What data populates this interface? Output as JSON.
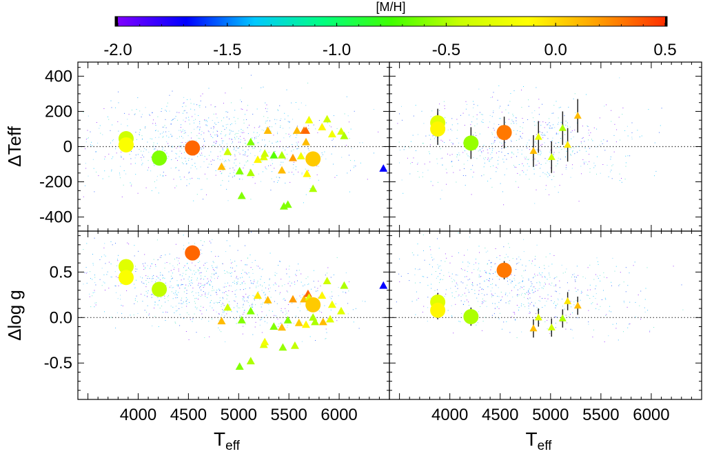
{
  "chart_data": {
    "type": "scatter",
    "colorbar": {
      "label": "[M/H]",
      "range": [
        -2.0,
        0.5
      ],
      "tick_labels": [
        "-2.0",
        "-1.5",
        "-1.0",
        "-0.5",
        "0.0",
        "0.5"
      ],
      "tick_values": [
        -2.0,
        -1.5,
        -1.0,
        -0.5,
        0.0,
        0.5
      ],
      "colors": [
        "#7f00ff",
        "#0000ff",
        "#00c8ff",
        "#00ff80",
        "#40ff00",
        "#c8ff00",
        "#ffff00",
        "#ffa000",
        "#ff3000"
      ]
    },
    "xlabel_main": "T",
    "xlabel_sub": "eff",
    "xlim": [
      3400,
      6500
    ],
    "x_tick_labels": [
      "4000",
      "4500",
      "5000",
      "5500",
      "6000"
    ],
    "x_tick_values": [
      4000,
      4500,
      5000,
      5500,
      6000
    ],
    "rows": [
      {
        "ylabel": "ΔTeff",
        "ylim": [
          -480,
          480
        ],
        "y_tick_labels": [
          "400",
          "200",
          "0",
          "-200",
          "-400"
        ],
        "y_tick_values": [
          400,
          200,
          0,
          -200,
          -400
        ],
        "zero_line": 0
      },
      {
        "ylabel": "Δlog g",
        "ylim": [
          -0.9,
          0.95
        ],
        "y_tick_labels": [
          "0.5",
          "0.0",
          "-0.5"
        ],
        "y_tick_values": [
          0.5,
          0.0,
          -0.5
        ],
        "zero_line": 0
      }
    ],
    "panels": [
      {
        "id": "top-left",
        "row": 0,
        "circles": [
          {
            "teff": 3880,
            "dy": 45,
            "mh": -0.4
          },
          {
            "teff": 3880,
            "dy": 10,
            "mh": -0.15
          },
          {
            "teff": 4210,
            "dy": -65,
            "mh": -0.6
          },
          {
            "teff": 4540,
            "dy": -8,
            "mh": 0.35
          },
          {
            "teff": 5740,
            "dy": -70,
            "mh": 0.05
          }
        ],
        "triangles": [
          {
            "teff": 4830,
            "dy": -115,
            "mh": 0.1
          },
          {
            "teff": 4890,
            "dy": -30,
            "mh": -0.4
          },
          {
            "teff": 5010,
            "dy": -140,
            "mh": -0.6
          },
          {
            "teff": 5030,
            "dy": -280,
            "mh": -0.6
          },
          {
            "teff": 5120,
            "dy": 25,
            "mh": -0.6
          },
          {
            "teff": 5120,
            "dy": -150,
            "mh": -0.5
          },
          {
            "teff": 5190,
            "dy": -75,
            "mh": -0.1
          },
          {
            "teff": 5250,
            "dy": -60,
            "mh": -0.3
          },
          {
            "teff": 5260,
            "dy": -40,
            "mh": -0.4
          },
          {
            "teff": 5290,
            "dy": 90,
            "mh": 0.1
          },
          {
            "teff": 5350,
            "dy": -50,
            "mh": -0.7
          },
          {
            "teff": 5430,
            "dy": -50,
            "mh": -0.5
          },
          {
            "teff": 5430,
            "dy": -135,
            "mh": 0.1
          },
          {
            "teff": 5450,
            "dy": -340,
            "mh": -0.6
          },
          {
            "teff": 5490,
            "dy": -330,
            "mh": -0.6
          },
          {
            "teff": 5540,
            "dy": -65,
            "mh": 0.2
          },
          {
            "teff": 5580,
            "dy": 90,
            "mh": 0.1
          },
          {
            "teff": 5620,
            "dy": -55,
            "mh": -0.2
          },
          {
            "teff": 5650,
            "dy": 90,
            "mh": 0.3
          },
          {
            "teff": 5670,
            "dy": 25,
            "mh": 0.1
          },
          {
            "teff": 5670,
            "dy": 90,
            "mh": 0.35
          },
          {
            "teff": 5680,
            "dy": -155,
            "mh": -0.1
          },
          {
            "teff": 5700,
            "dy": 150,
            "mh": -0.2
          },
          {
            "teff": 5720,
            "dy": -75,
            "mh": -0.4
          },
          {
            "teff": 5740,
            "dy": -240,
            "mh": -0.5
          },
          {
            "teff": 5830,
            "dy": 110,
            "mh": -0.1
          },
          {
            "teff": 5880,
            "dy": 155,
            "mh": -0.4
          },
          {
            "teff": 5930,
            "dy": 70,
            "mh": -0.2
          },
          {
            "teff": 6020,
            "dy": 85,
            "mh": -0.35
          },
          {
            "teff": 6050,
            "dy": 60,
            "mh": -0.5
          },
          {
            "teff": 6440,
            "dy": -125,
            "mh": -1.7
          }
        ]
      },
      {
        "id": "top-right",
        "row": 0,
        "circles": [
          {
            "teff": 3880,
            "dy": 135,
            "mh": -0.3,
            "err": 80
          },
          {
            "teff": 3880,
            "dy": 100,
            "mh": -0.1,
            "err": 90
          },
          {
            "teff": 4210,
            "dy": 20,
            "mh": -0.55,
            "err": 90
          },
          {
            "teff": 4540,
            "dy": 80,
            "mh": 0.3,
            "err": 90
          }
        ],
        "triangles": [
          {
            "teff": 4830,
            "dy": -25,
            "mh": 0.1,
            "err": 90
          },
          {
            "teff": 4880,
            "dy": 55,
            "mh": -0.25,
            "err": 90
          },
          {
            "teff": 5010,
            "dy": -60,
            "mh": -0.4,
            "err": 90
          },
          {
            "teff": 5120,
            "dy": 105,
            "mh": -0.5,
            "err": 95
          },
          {
            "teff": 5170,
            "dy": 10,
            "mh": -0.05,
            "err": 95
          },
          {
            "teff": 5270,
            "dy": 175,
            "mh": 0.1,
            "err": 95
          }
        ]
      },
      {
        "id": "bottom-left",
        "row": 1,
        "circles": [
          {
            "teff": 3880,
            "dy": 0.56,
            "mh": -0.3
          },
          {
            "teff": 3880,
            "dy": 0.44,
            "mh": -0.15
          },
          {
            "teff": 4210,
            "dy": 0.31,
            "mh": -0.45
          },
          {
            "teff": 4540,
            "dy": 0.71,
            "mh": 0.35
          },
          {
            "teff": 5740,
            "dy": 0.14,
            "mh": 0.05
          }
        ],
        "triangles": [
          {
            "teff": 4830,
            "dy": -0.04,
            "mh": 0.1
          },
          {
            "teff": 4890,
            "dy": 0.11,
            "mh": -0.4
          },
          {
            "teff": 5010,
            "dy": -0.54,
            "mh": -0.6
          },
          {
            "teff": 5030,
            "dy": -0.03,
            "mh": -0.6
          },
          {
            "teff": 5120,
            "dy": -0.48,
            "mh": -0.5
          },
          {
            "teff": 5120,
            "dy": 0.07,
            "mh": -0.6
          },
          {
            "teff": 5190,
            "dy": 0.24,
            "mh": -0.05
          },
          {
            "teff": 5250,
            "dy": -0.3,
            "mh": -0.3
          },
          {
            "teff": 5260,
            "dy": -0.27,
            "mh": -0.2
          },
          {
            "teff": 5290,
            "dy": 0.19,
            "mh": 0.1
          },
          {
            "teff": 5350,
            "dy": -0.1,
            "mh": -0.6
          },
          {
            "teff": 5430,
            "dy": -0.11,
            "mh": 0.1
          },
          {
            "teff": 5440,
            "dy": -0.33,
            "mh": -0.55
          },
          {
            "teff": 5490,
            "dy": -0.03,
            "mh": -0.6
          },
          {
            "teff": 5540,
            "dy": 0.2,
            "mh": 0.2
          },
          {
            "teff": 5560,
            "dy": -0.31,
            "mh": -0.45
          },
          {
            "teff": 5600,
            "dy": -0.06,
            "mh": 0.05
          },
          {
            "teff": 5650,
            "dy": 0.2,
            "mh": 0.1
          },
          {
            "teff": 5670,
            "dy": -0.08,
            "mh": -0.1
          },
          {
            "teff": 5690,
            "dy": 0.26,
            "mh": 0.35
          },
          {
            "teff": 5700,
            "dy": 0.22,
            "mh": -0.3
          },
          {
            "teff": 5740,
            "dy": 0.0,
            "mh": -0.5
          },
          {
            "teff": 5760,
            "dy": -0.05,
            "mh": -0.5
          },
          {
            "teff": 5830,
            "dy": 0.24,
            "mh": -0.1
          },
          {
            "teff": 5840,
            "dy": -0.05,
            "mh": 0.1
          },
          {
            "teff": 5880,
            "dy": 0.4,
            "mh": -0.4
          },
          {
            "teff": 5910,
            "dy": -0.02,
            "mh": -0.3
          },
          {
            "teff": 5930,
            "dy": 0.14,
            "mh": -0.2
          },
          {
            "teff": 6020,
            "dy": 0.07,
            "mh": -0.3
          },
          {
            "teff": 6050,
            "dy": 0.35,
            "mh": -0.5
          },
          {
            "teff": 6440,
            "dy": 0.35,
            "mh": -1.7
          }
        ]
      },
      {
        "id": "bottom-right",
        "row": 1,
        "circles": [
          {
            "teff": 3880,
            "dy": 0.17,
            "mh": -0.3,
            "err": 0.1
          },
          {
            "teff": 3880,
            "dy": 0.08,
            "mh": -0.1,
            "err": 0.1
          },
          {
            "teff": 4210,
            "dy": 0.01,
            "mh": -0.5,
            "err": 0.1
          },
          {
            "teff": 4540,
            "dy": 0.52,
            "mh": 0.3,
            "err": 0.1
          }
        ],
        "triangles": [
          {
            "teff": 4830,
            "dy": -0.12,
            "mh": 0.1,
            "err": 0.1
          },
          {
            "teff": 4880,
            "dy": 0.0,
            "mh": -0.3,
            "err": 0.1
          },
          {
            "teff": 5010,
            "dy": -0.11,
            "mh": -0.4,
            "err": 0.1
          },
          {
            "teff": 5120,
            "dy": -0.01,
            "mh": -0.5,
            "err": 0.1
          },
          {
            "teff": 5170,
            "dy": 0.18,
            "mh": -0.05,
            "err": 0.1
          },
          {
            "teff": 5270,
            "dy": 0.13,
            "mh": 0.1,
            "err": 0.1
          }
        ]
      }
    ]
  }
}
